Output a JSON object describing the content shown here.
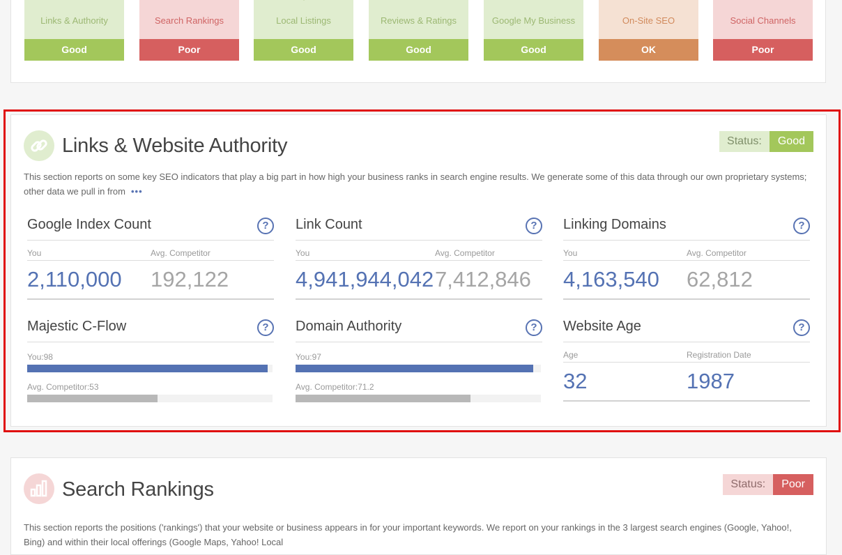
{
  "summary_tiles": [
    {
      "label": "Links & Authority",
      "status": "Good",
      "icon": "chain-link-icon"
    },
    {
      "label": "Search Rankings",
      "status": "Poor",
      "icon": "bar-chart-icon"
    },
    {
      "label": "Local Listings",
      "status": "Good",
      "icon": "map-pin-icon"
    },
    {
      "label": "Reviews & Ratings",
      "status": "Good",
      "icon": "star-icon"
    },
    {
      "label": "Google My Business",
      "status": "Good",
      "icon": "storefront-icon"
    },
    {
      "label": "On-Site SEO",
      "status": "OK",
      "icon": "monitor-icon"
    },
    {
      "label": "Social Channels",
      "status": "Poor",
      "icon": "share-icon"
    }
  ],
  "colors": {
    "good": "#a3c75b",
    "poor": "#d65f5f",
    "ok": "#d58d5b",
    "accent": "#5472b3",
    "highlight": "#e01010"
  },
  "authority": {
    "icon": "chain-link-icon",
    "title": "Links & Website Authority",
    "status_label": "Status:",
    "status_value": "Good",
    "description": "This section reports on some key SEO indicators that play a big part in how high your business ranks in search engine results. We generate some of this data through our own proprietary systems; other data we pull in from",
    "more": "•••",
    "google_index": {
      "title": "Google Index Count",
      "help": "?",
      "you_label": "You",
      "comp_label": "Avg. Competitor",
      "you_value": "2,110,000",
      "comp_value": "192,122"
    },
    "link_count": {
      "title": "Link Count",
      "help": "?",
      "you_label": "You",
      "comp_label": "Avg. Competitor",
      "you_value": "4,941,944,042",
      "comp_value": "7,412,846"
    },
    "linking_domains": {
      "title": "Linking Domains",
      "help": "?",
      "you_label": "You",
      "comp_label": "Avg. Competitor",
      "you_value": "4,163,540",
      "comp_value": "62,812"
    },
    "majestic": {
      "title": "Majestic C-Flow",
      "help": "?",
      "you_label": "You:98",
      "comp_label": "Avg. Competitor:53",
      "you_fraction": 0.98,
      "comp_fraction": 0.53
    },
    "domain_authority": {
      "title": "Domain Authority",
      "help": "?",
      "you_label": "You:97",
      "comp_label": "Avg. Competitor:71.2",
      "you_fraction": 0.97,
      "comp_fraction": 0.712
    },
    "website_age": {
      "title": "Website Age",
      "help": "?",
      "age_label": "Age",
      "reg_label": "Registration Date",
      "age_value": "32",
      "reg_value": "1987"
    }
  },
  "rankings": {
    "icon": "bar-chart-icon",
    "title": "Search Rankings",
    "status_label": "Status:",
    "status_value": "Poor",
    "description": "This section reports the positions ('rankings') that your website or business appears in for your important keywords. We report on your rankings in the 3 largest search engines (Google, Yahoo!, Bing) and within their local offerings (Google Maps, Yahoo! Local"
  }
}
